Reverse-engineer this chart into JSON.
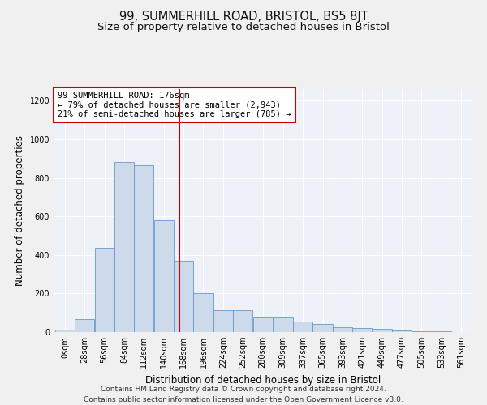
{
  "title": "99, SUMMERHILL ROAD, BRISTOL, BS5 8JT",
  "subtitle": "Size of property relative to detached houses in Bristol",
  "xlabel": "Distribution of detached houses by size in Bristol",
  "ylabel": "Number of detached properties",
  "bar_color": "#ccdaeb",
  "bar_edge_color": "#6699cc",
  "background_color": "#eef2f8",
  "annotation_box_color": "#cc0000",
  "vline_color": "#cc0000",
  "vline_x": 176,
  "annotation_text": "99 SUMMERHILL ROAD: 176sqm\n← 79% of detached houses are smaller (2,943)\n21% of semi-detached houses are larger (785) →",
  "categories": [
    "0sqm",
    "28sqm",
    "56sqm",
    "84sqm",
    "112sqm",
    "140sqm",
    "168sqm",
    "196sqm",
    "224sqm",
    "252sqm",
    "280sqm",
    "309sqm",
    "337sqm",
    "365sqm",
    "393sqm",
    "421sqm",
    "449sqm",
    "477sqm",
    "505sqm",
    "533sqm",
    "561sqm"
  ],
  "bin_edges": [
    0,
    28,
    56,
    84,
    112,
    140,
    168,
    196,
    224,
    252,
    280,
    309,
    337,
    365,
    393,
    421,
    449,
    477,
    505,
    533,
    561
  ],
  "values": [
    12,
    67,
    437,
    880,
    865,
    578,
    370,
    203,
    113,
    113,
    80,
    80,
    55,
    43,
    25,
    20,
    18,
    10,
    5,
    3,
    2
  ],
  "ylim": [
    0,
    1260
  ],
  "yticks": [
    0,
    200,
    400,
    600,
    800,
    1000,
    1200
  ],
  "footer_line1": "Contains HM Land Registry data © Crown copyright and database right 2024.",
  "footer_line2": "Contains public sector information licensed under the Open Government Licence v3.0.",
  "title_fontsize": 10.5,
  "subtitle_fontsize": 9.5,
  "axis_label_fontsize": 8.5,
  "tick_fontsize": 7,
  "annotation_fontsize": 7.5,
  "footer_fontsize": 6.5
}
